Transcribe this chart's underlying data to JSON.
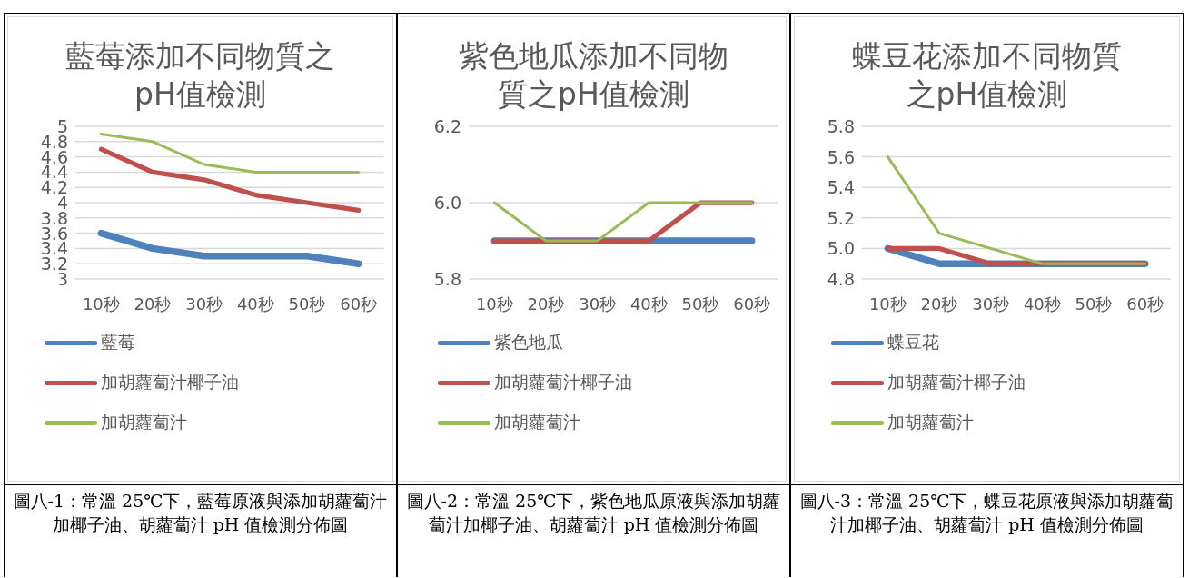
{
  "chart_data": [
    {
      "type": "line",
      "title": "藍莓添加不同物質之pH值檢測",
      "categories": [
        "10秒",
        "20秒",
        "30秒",
        "40秒",
        "50秒",
        "60秒"
      ],
      "ylim": [
        3,
        5
      ],
      "yticks": [
        3,
        3.2,
        3.4,
        3.6,
        3.8,
        4,
        4.2,
        4.4,
        4.6,
        4.8,
        5
      ],
      "grid": "y",
      "legend": "bottom",
      "marker": "none",
      "series": [
        {
          "name": "藍莓",
          "color": "#4f81bd",
          "values": [
            3.6,
            3.4,
            3.3,
            3.3,
            3.3,
            3.2
          ]
        },
        {
          "name": "加胡蘿蔔汁椰子油",
          "color": "#c0504d",
          "values": [
            4.7,
            4.4,
            4.3,
            4.1,
            4.0,
            3.9
          ]
        },
        {
          "name": "加胡蘿蔔汁",
          "color": "#9bbb59",
          "values": [
            4.9,
            4.8,
            4.5,
            4.4,
            4.4,
            4.4
          ]
        }
      ],
      "annotations": [
        "圖八-1：常溫 25℃下，藍莓原液與添加胡蘿蔔汁加椰子油、胡蘿蔔汁 pH 值檢測分佈圖"
      ]
    },
    {
      "type": "line",
      "title": "紫色地瓜添加不同物質之pH值檢測",
      "categories": [
        "10秒",
        "20秒",
        "30秒",
        "40秒",
        "50秒",
        "60秒"
      ],
      "ylim": [
        5.8,
        6.2
      ],
      "yticks": [
        {
          "value": 5.8,
          "label": "5.8"
        },
        {
          "value": 6,
          "label": "6.0"
        },
        {
          "value": 6.2,
          "label": "6.2"
        }
      ],
      "grid": "y",
      "legend": "bottom",
      "marker": "none",
      "series": [
        {
          "name": "紫色地瓜",
          "color": "#4f81bd",
          "values": [
            5.9,
            5.9,
            5.9,
            5.9,
            5.9,
            5.9
          ]
        },
        {
          "name": "加胡蘿蔔汁椰子油",
          "color": "#c0504d",
          "values": [
            5.9,
            5.9,
            5.9,
            5.9,
            6.0,
            6.0
          ]
        },
        {
          "name": "加胡蘿蔔汁",
          "color": "#9bbb59",
          "values": [
            6.0,
            5.9,
            5.9,
            6.0,
            6.0,
            6.0
          ]
        }
      ],
      "annotations": [
        "圖八-2：常溫 25℃下，紫色地瓜原液與添加胡蘿蔔汁加椰子油、胡蘿蔔汁 pH 值檢測分佈圖"
      ]
    },
    {
      "type": "line",
      "title": "蝶豆花添加不同物質之pH值檢測",
      "categories": [
        "10秒",
        "20秒",
        "30秒",
        "40秒",
        "50秒",
        "60秒"
      ],
      "ylim": [
        4.8,
        5.8
      ],
      "yticks": [
        {
          "value": 4.8,
          "label": "4.8"
        },
        {
          "value": 5,
          "label": "5.0"
        },
        {
          "value": 5.2,
          "label": "5.2"
        },
        {
          "value": 5.4,
          "label": "5.4"
        },
        {
          "value": 5.6,
          "label": "5.6"
        },
        {
          "value": 5.8,
          "label": "5.8"
        }
      ],
      "grid": "y",
      "legend": "bottom",
      "marker": "none",
      "series": [
        {
          "name": "蝶豆花",
          "color": "#4f81bd",
          "values": [
            5.0,
            4.9,
            4.9,
            4.9,
            4.9,
            4.9
          ]
        },
        {
          "name": "加胡蘿蔔汁椰子油",
          "color": "#c0504d",
          "values": [
            5.0,
            5.0,
            4.9,
            4.9,
            4.9,
            4.9
          ]
        },
        {
          "name": "加胡蘿蔔汁",
          "color": "#9bbb59",
          "values": [
            5.6,
            5.1,
            5.0,
            4.9,
            4.9,
            4.9
          ]
        }
      ],
      "annotations": [
        "圖八-3：常溫 25℃下，蝶豆花原液與添加胡蘿蔔汁加椰子油、胡蘿蔔汁 pH 值檢測分佈圖"
      ]
    }
  ]
}
